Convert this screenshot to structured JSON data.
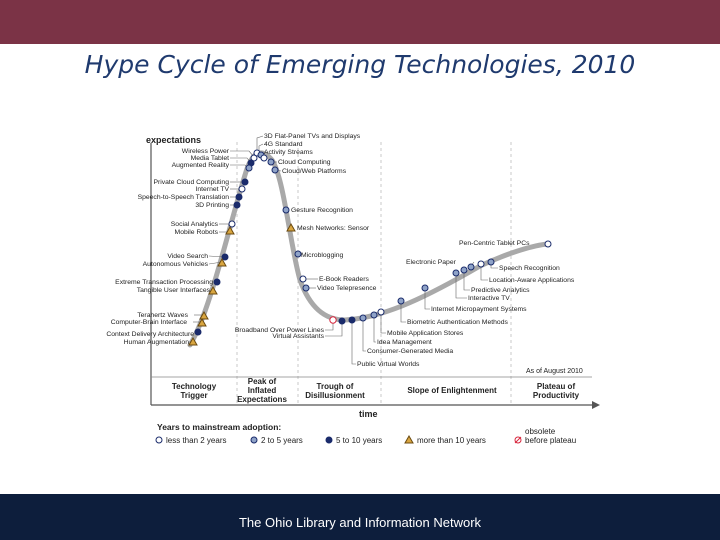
{
  "slide": {
    "title": "Hype Cycle of Emerging Technologies, 2010",
    "footer": "The Ohio Library and Information Network"
  },
  "colors": {
    "top_band": "#7b3346",
    "bottom_band": "#0d1e3c",
    "title": "#1f3a6e",
    "curve": "#a9a9a9",
    "dot_dark": "#1a2b6b",
    "dot_light": "#ffffff",
    "triangle": "#d9a640",
    "obsolete": "#d7263d"
  },
  "chart": {
    "y_axis_label": "expectations",
    "x_axis_label": "time",
    "date_note": "As of August 2010",
    "phases": [
      {
        "lines": [
          "Technology",
          "Trigger"
        ]
      },
      {
        "lines": [
          "Peak of",
          "Inflated",
          "Expectations"
        ]
      },
      {
        "lines": [
          "Trough of",
          "Disillusionment"
        ]
      },
      {
        "lines": [
          "Slope of Enlightenment"
        ]
      },
      {
        "lines": [
          "Plateau of",
          "Productivity"
        ]
      }
    ],
    "legend": {
      "title": "Years to mainstream adoption:",
      "items": [
        {
          "label": "less than 2 years",
          "marker": "light"
        },
        {
          "label": "2 to 5 years",
          "marker": "mid"
        },
        {
          "label": "5 to 10 years",
          "marker": "dark"
        },
        {
          "label": "more than 10 years",
          "marker": "triangle"
        },
        {
          "label": "obsolete",
          "label2": "before plateau",
          "marker": "obsolete"
        }
      ]
    },
    "technologies": {
      "trigger": [
        "Wireless Power",
        "Media Tablet",
        "Augmented Reality",
        "Private Cloud Computing",
        "Internet TV",
        "Speech-to-Speech Translation",
        "3D Printing",
        "Social Analytics",
        "Mobile Robots",
        "Video Search",
        "Autonomous Vehicles",
        "Extreme Transaction Processing",
        "Tangible User Interfaces",
        "Terahertz Waves",
        "Computer-Brain Interface",
        "Context Delivery Architecture",
        "Human Augmentation"
      ],
      "peak": [
        "3D Flat-Panel TVs and Displays",
        "4G Standard",
        "Activity Streams",
        "Cloud Computing",
        "Cloud/Web Platforms"
      ],
      "descent": [
        "Gesture Recognition",
        "Mesh Networks: Sensor",
        "Microblogging",
        "E-Book Readers",
        "Video Telepresence"
      ],
      "trough": [
        "Broadband Over Power Lines",
        "Virtual Assistants",
        "Public Virtual Worlds",
        "Consumer-Generated Media",
        "Idea Management",
        "Mobile Application Stores"
      ],
      "slope": [
        "Biometric Authentication Methods",
        "Internet Micropayment Systems",
        "Interactive TV",
        "Predictive Analytics",
        "Location-Aware Applications",
        "Speech Recognition",
        "Electronic Paper",
        "Pen-Centric Tablet PCs"
      ]
    }
  }
}
